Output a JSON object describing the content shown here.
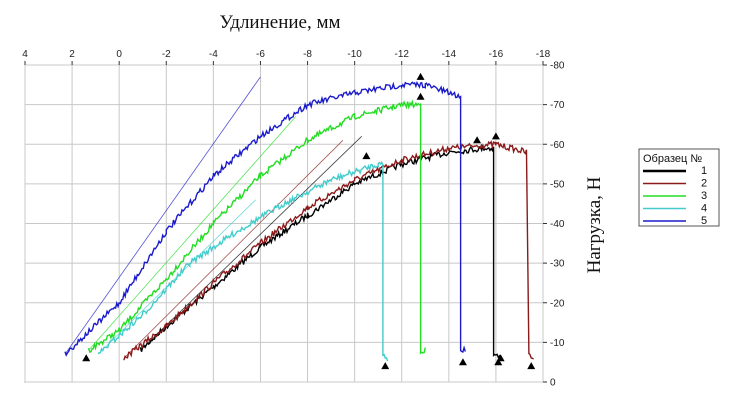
{
  "chart_data": {
    "type": "line",
    "xlabel": "Удлинение, мм",
    "ylabel": "Нагрузка, Н",
    "xlim": [
      4,
      -18
    ],
    "ylim": [
      0,
      80
    ],
    "x_ticks": [
      "4",
      "2",
      "0",
      "-2",
      "-4",
      "-6",
      "-8",
      "-10",
      "-12",
      "-14",
      "-16",
      "-18"
    ],
    "y_ticks": [
      "0",
      "-10",
      "-20",
      "-30",
      "-40",
      "-50",
      "-60",
      "-70",
      "-80"
    ],
    "grid": true,
    "legend": {
      "title": "Образец №",
      "placement": "right",
      "entries": [
        "1",
        "2",
        "3",
        "4",
        "5"
      ]
    },
    "series": [
      {
        "name": "1",
        "color": "#000000",
        "points": [
          [
            -0.9,
            8
          ],
          [
            -2,
            14
          ],
          [
            -4,
            24
          ],
          [
            -6,
            34
          ],
          [
            -8,
            42
          ],
          [
            -10,
            50
          ],
          [
            -12,
            55
          ],
          [
            -14,
            58
          ],
          [
            -15.5,
            59
          ],
          [
            -15.9,
            59
          ],
          [
            -15.9,
            7
          ],
          [
            -16.2,
            6
          ]
        ],
        "marker": [
          -16.1,
          5
        ],
        "fit": [
          [
            -0.9,
            8
          ],
          [
            -10.3,
            62
          ]
        ]
      },
      {
        "name": "2",
        "color": "#8b1a1a",
        "points": [
          [
            -0.2,
            6
          ],
          [
            -2,
            14
          ],
          [
            -4,
            25
          ],
          [
            -6,
            35
          ],
          [
            -8,
            44
          ],
          [
            -10,
            51
          ],
          [
            -12,
            56
          ],
          [
            -14,
            59
          ],
          [
            -16,
            60
          ],
          [
            -17.3,
            58
          ],
          [
            -17.4,
            7
          ],
          [
            -17.6,
            6
          ]
        ],
        "marker": [
          -16.0,
          62
        ],
        "fit": [
          [
            -0.2,
            6
          ],
          [
            -9.5,
            61
          ]
        ]
      },
      {
        "name": "3",
        "color": "#22dd22",
        "points": [
          [
            1.3,
            8
          ],
          [
            0,
            13
          ],
          [
            -2,
            26
          ],
          [
            -4,
            40
          ],
          [
            -6,
            52
          ],
          [
            -8,
            61
          ],
          [
            -10,
            67
          ],
          [
            -12,
            70
          ],
          [
            -12.8,
            70
          ],
          [
            -12.8,
            8
          ],
          [
            -13,
            8
          ]
        ],
        "marker": [
          -12.8,
          77
        ],
        "fit": [
          [
            1.3,
            8
          ],
          [
            -7.5,
            67
          ]
        ]
      },
      {
        "name": "4",
        "color": "#44cccc",
        "points": [
          [
            0.9,
            7
          ],
          [
            -1,
            17
          ],
          [
            -3,
            30
          ],
          [
            -5,
            38
          ],
          [
            -7,
            45
          ],
          [
            -9,
            51
          ],
          [
            -11,
            55
          ],
          [
            -11.2,
            55
          ],
          [
            -11.2,
            7
          ],
          [
            -11.4,
            6
          ]
        ],
        "marker": [
          -10.5,
          57
        ],
        "fit": [
          [
            0.9,
            7
          ],
          [
            -5.8,
            46
          ]
        ]
      },
      {
        "name": "5",
        "color": "#1a1acc",
        "points": [
          [
            2.3,
            7
          ],
          [
            0,
            20
          ],
          [
            -2,
            38
          ],
          [
            -4,
            52
          ],
          [
            -6,
            62
          ],
          [
            -8,
            70
          ],
          [
            -10,
            73
          ],
          [
            -12,
            75
          ],
          [
            -13,
            75
          ],
          [
            -14.5,
            72
          ],
          [
            -14.5,
            8
          ],
          [
            -14.7,
            8
          ]
        ],
        "marker": [
          -14.6,
          5
        ],
        "fit": [
          [
            2.3,
            7
          ],
          [
            -6,
            77
          ]
        ]
      }
    ],
    "extra_markers": [
      [
        1.4,
        6
      ],
      [
        -11.3,
        4
      ],
      [
        -16.2,
        6
      ],
      [
        -12.8,
        72
      ],
      [
        -15.2,
        61
      ],
      [
        -17.5,
        4
      ]
    ]
  }
}
